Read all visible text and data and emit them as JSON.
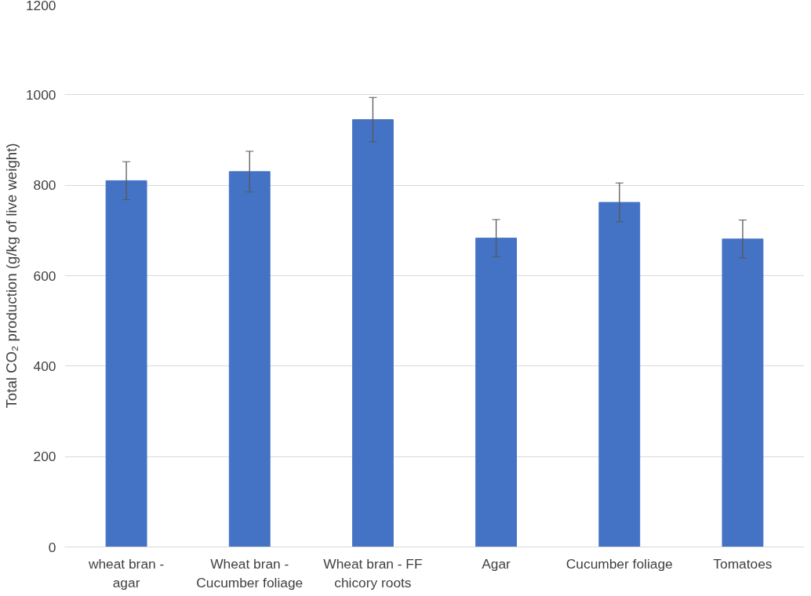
{
  "chart_data": {
    "type": "bar",
    "ylabel": "Total CO₂ production (g/kg of live weight)",
    "categories": [
      "wheat bran - agar",
      "Wheat bran - Cucumber foliage",
      "Wheat bran - FF chicory roots",
      "Agar",
      "Cucumber foliage",
      "Tomatoes"
    ],
    "values": [
      810,
      830,
      945,
      683,
      762,
      681
    ],
    "errors": [
      42,
      45,
      49,
      41,
      43,
      42
    ],
    "color": "#4472c4",
    "ylim": [
      0,
      1200
    ],
    "yticks": [
      0,
      200,
      400,
      600,
      800,
      1000,
      1200
    ],
    "grid": "y"
  }
}
